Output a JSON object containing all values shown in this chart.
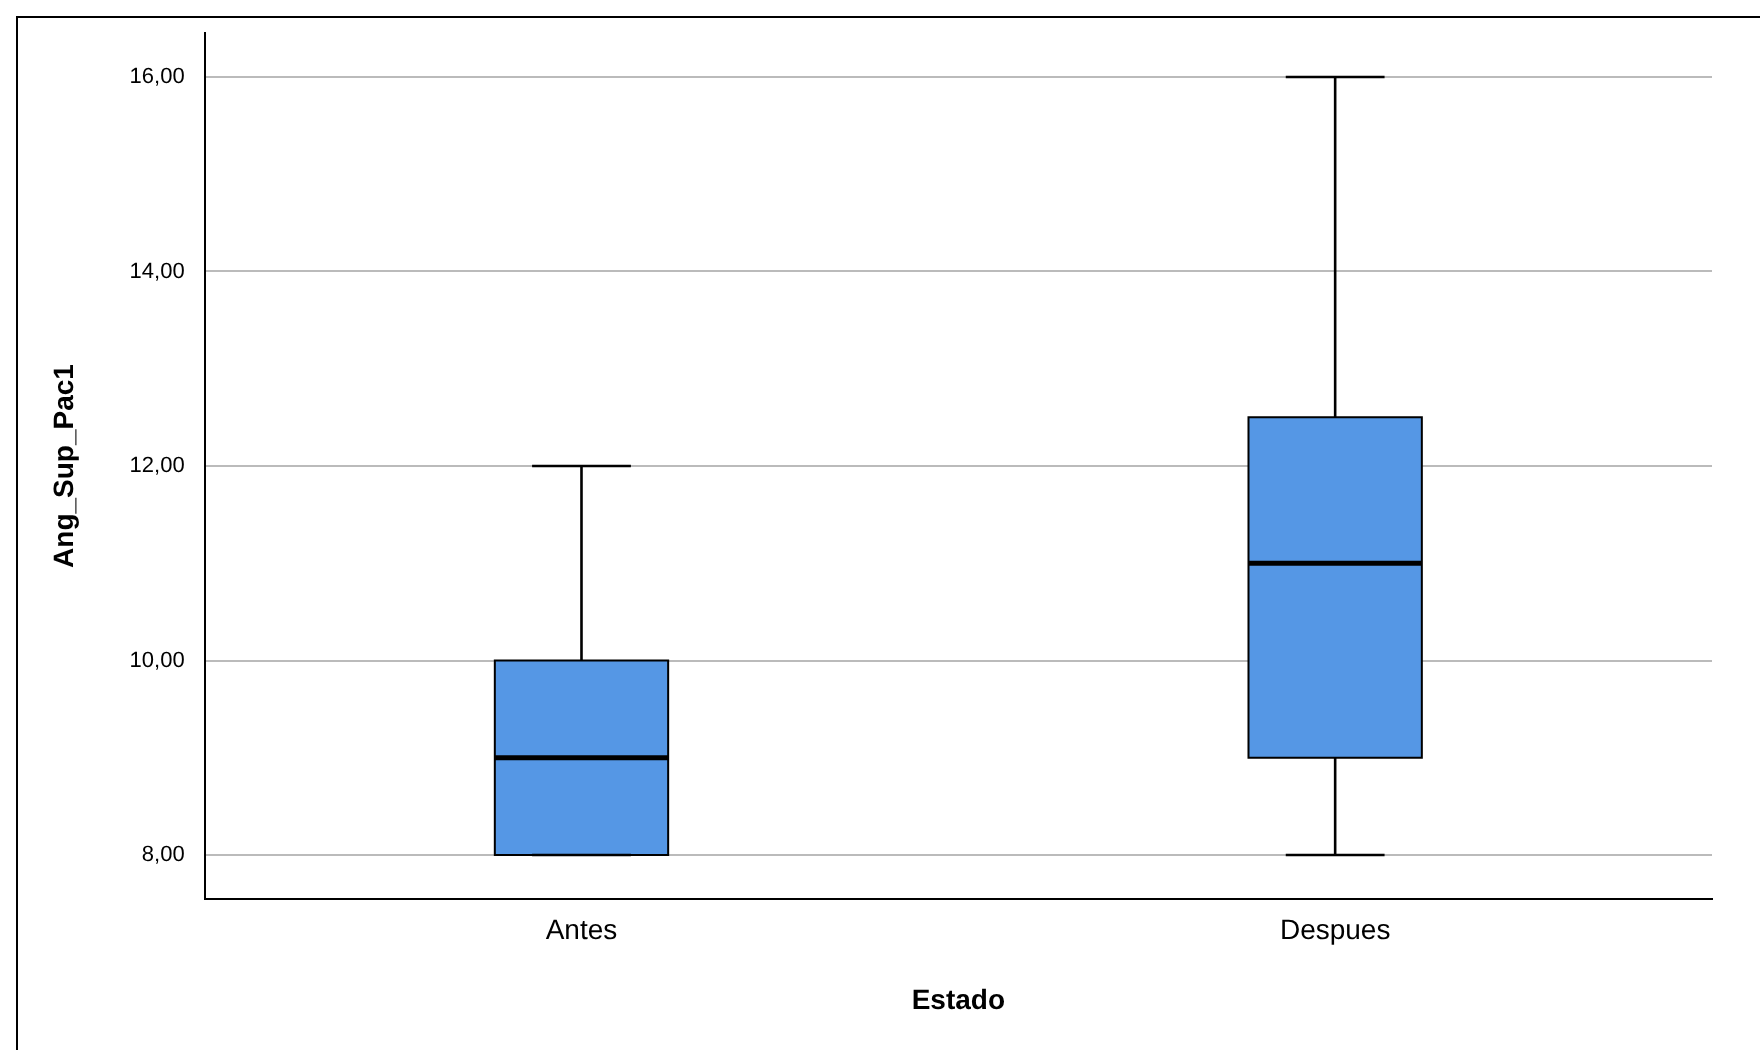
{
  "chart_data": {
    "type": "box",
    "xlabel": "Estado",
    "ylabel": "Ang_Sup_Pac1",
    "categories": [
      "Antes",
      "Despues"
    ],
    "color": "#5597e5",
    "boxes": [
      {
        "low": 8,
        "q1": 8,
        "median": 9,
        "q3": 10,
        "high": 12
      },
      {
        "low": 8,
        "q1": 9,
        "median": 11,
        "q3": 12.5,
        "high": 16
      }
    ],
    "ylim": [
      7.55,
      16.45
    ],
    "yticks": [
      {
        "value": 8,
        "label": "8,00"
      },
      {
        "value": 10,
        "label": "10,00"
      },
      {
        "value": 12,
        "label": "12,00"
      },
      {
        "value": 14,
        "label": "14,00"
      },
      {
        "value": 16,
        "label": "16,00"
      }
    ],
    "grid": "y"
  }
}
